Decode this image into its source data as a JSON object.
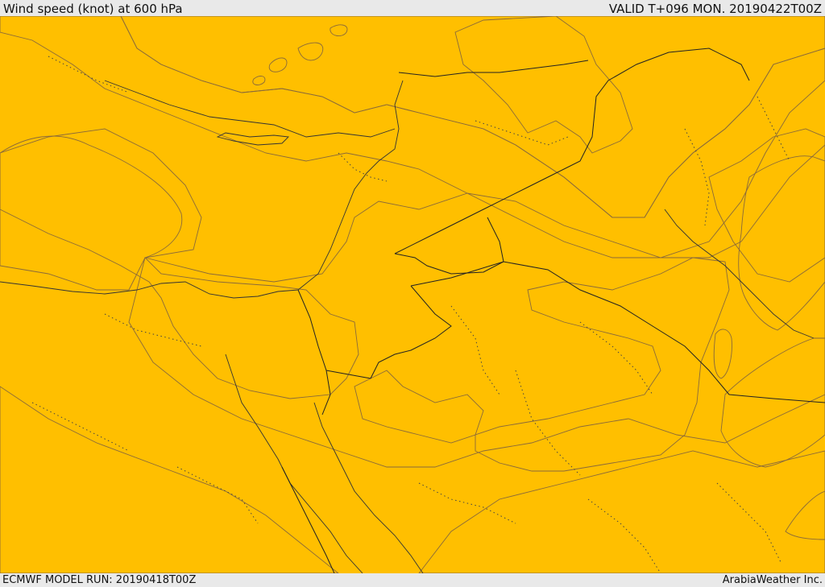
{
  "header": {
    "title": "Wind speed (knot) at 600 hPa",
    "valid": "VALID T+096 MON. 20190422T00Z"
  },
  "footer": {
    "model_run": "ECMWF MODEL RUN: 20190418T00Z",
    "credit": "ArabiaWeather Inc."
  },
  "map": {
    "colors": {
      "very_low": "#fde0a8",
      "low": "#ffff00",
      "moderate": "#ffde00",
      "medium": "#ffbf00",
      "high": "#ffa000",
      "very_high": "#ff8000"
    }
  }
}
